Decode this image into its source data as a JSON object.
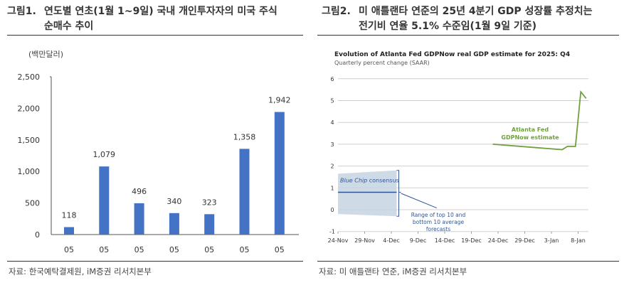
{
  "fig1": {
    "num": "그림1.",
    "title_l1": "연도별 연초(1월 1~9일) 국내 개인투자자의 미국 주식",
    "title_l2": "순매수 추이",
    "source": "자료: 한국예탁결제원, iM증권 리서치본부"
  },
  "fig2": {
    "num": "그림2.",
    "title_l1": "미 애틀랜타 연준의 25년 4분기 GDP 성장률 추정치는",
    "title_l2": "전기비 연율 5.1% 수준임(1월 9일 기준)",
    "source": "자료: 미 애틀랜타 연준, iM증권 리서치본부"
  },
  "chart_data": [
    {
      "type": "bar",
      "title": "",
      "ylabel": "(백만달러)",
      "ylim": [
        0,
        2500
      ],
      "yticks": [
        "0",
        "500",
        "1,000",
        "1,500",
        "2,000",
        "2,500"
      ],
      "categories": [
        "05",
        "05",
        "05",
        "05",
        "05",
        "05",
        "05"
      ],
      "values": [
        118,
        1079,
        496,
        340,
        323,
        1358,
        1942
      ],
      "labels": [
        "118",
        "1,079",
        "496",
        "340",
        "323",
        "1,358",
        "1,942"
      ],
      "color": "#4472c4"
    },
    {
      "type": "line",
      "title": "Evolution of Atlanta Fed GDPNow real GDP estimate for 2025: Q4",
      "subtitle": "Quarterly percent change (SAAR)",
      "ylim": [
        -1,
        6
      ],
      "yticks": [
        "6",
        "5",
        "4",
        "3",
        "2",
        "1",
        "0",
        "-1"
      ],
      "xticks": [
        "24-Nov",
        "29-Nov",
        "4-Dec",
        "9-Dec",
        "14-Dec",
        "19-Dec",
        "24-Dec",
        "29-Dec",
        "3-Jan",
        "8-Jan"
      ],
      "x_unit": "days since 24-Nov",
      "series": [
        {
          "name": "Atlanta Fed GDPNow estimate",
          "color": "#70a03c",
          "x": [
            29,
            42,
            43,
            44.5,
            45.5,
            46.5
          ],
          "y": [
            3.0,
            2.75,
            2.9,
            2.9,
            5.4,
            5.1
          ]
        },
        {
          "name": "Blue Chip consensus",
          "color": "#2f5597",
          "x": [
            0,
            11
          ],
          "y": [
            0.8,
            0.8
          ]
        }
      ],
      "band": {
        "name": "Range of top 10 and bottom 10 average forecasts",
        "x": [
          0,
          11
        ],
        "upper": [
          1.65,
          1.8
        ],
        "lower": [
          -0.2,
          -0.3
        ],
        "color": "#c5d3e0"
      },
      "annotations": {
        "gdpnow_l1": "Atlanta Fed",
        "gdpnow_l2": "GDPNow estimate",
        "bluechip_a": "Blue Chip",
        "bluechip_b": " consensus",
        "range_l1": "Range of top 10 and",
        "range_l2": "bottom 10 average",
        "range_l3": "forecasts"
      }
    }
  ]
}
